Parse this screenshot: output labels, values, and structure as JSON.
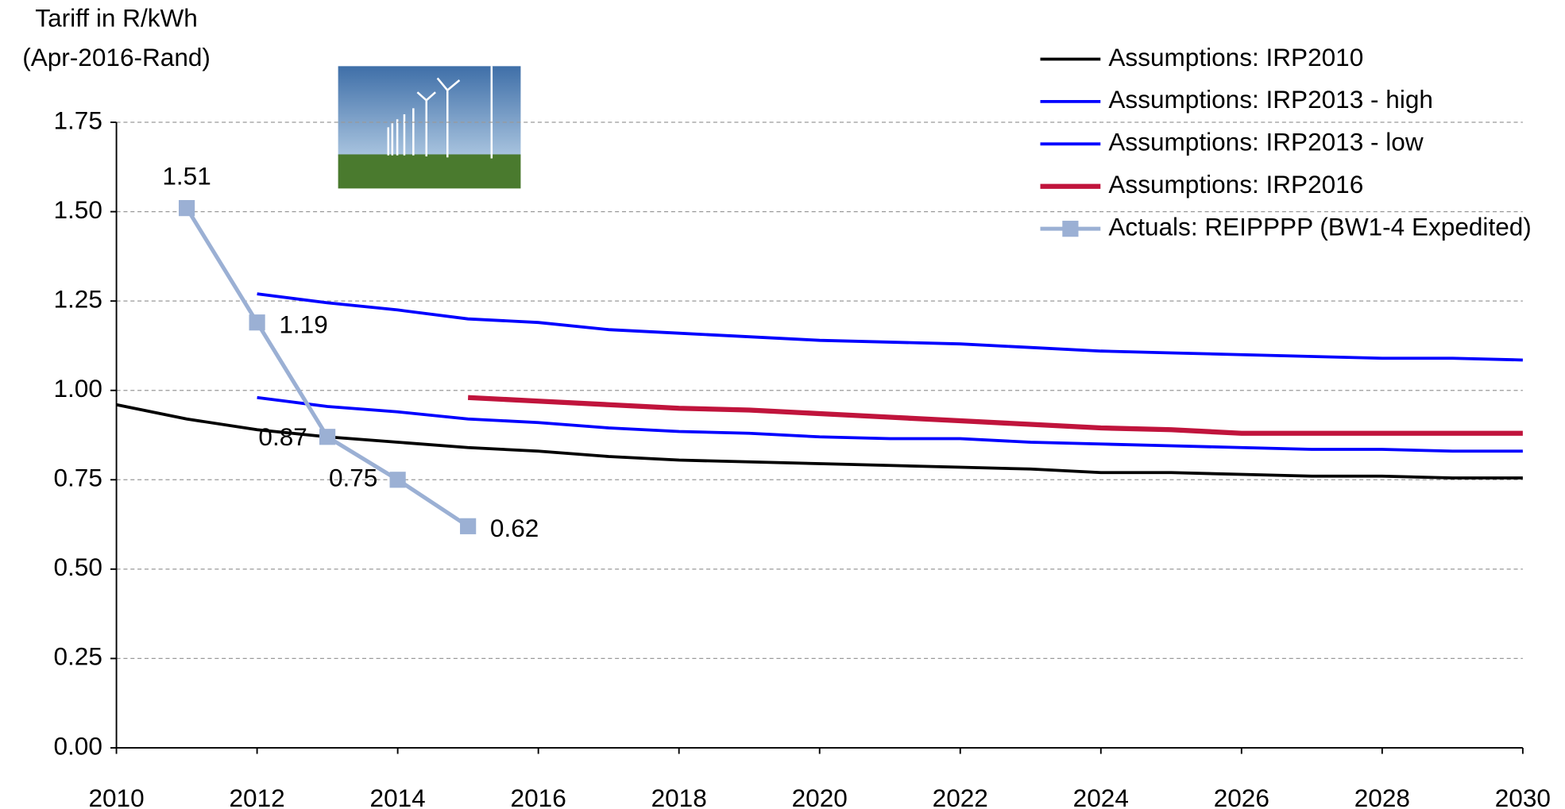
{
  "chart_data": {
    "type": "line",
    "ylabel": [
      "Tariff in R/kWh",
      "(Apr-2016-Rand)"
    ],
    "x": [
      2010,
      2011,
      2012,
      2013,
      2014,
      2015,
      2016,
      2017,
      2018,
      2019,
      2020,
      2021,
      2022,
      2023,
      2024,
      2025,
      2026,
      2027,
      2028,
      2029,
      2030
    ],
    "xlim": [
      2010,
      2030
    ],
    "xticks": [
      2010,
      2012,
      2014,
      2016,
      2018,
      2020,
      2022,
      2024,
      2026,
      2028,
      2030
    ],
    "ylim": [
      0,
      1.75
    ],
    "yticks": [
      {
        "value": 0,
        "label": "0.00"
      },
      {
        "value": 0.25,
        "label": "0.25"
      },
      {
        "value": 0.5,
        "label": "0.50"
      },
      {
        "value": 0.75,
        "label": "0.75"
      },
      {
        "value": 1,
        "label": "1.00"
      },
      {
        "value": 1.25,
        "label": "1.25"
      },
      {
        "value": 1.5,
        "label": "1.50"
      },
      {
        "value": 1.75,
        "label": "1.75"
      }
    ],
    "grid": true,
    "legend": "top-right",
    "series": [
      {
        "name": "Assumptions: IRP2010",
        "color": "#000000",
        "values": [
          0.96,
          0.92,
          0.89,
          0.87,
          0.855,
          0.84,
          0.83,
          0.815,
          0.805,
          0.8,
          0.795,
          0.79,
          0.785,
          0.78,
          0.77,
          0.77,
          0.765,
          0.76,
          0.76,
          0.755,
          0.755
        ]
      },
      {
        "name": "Assumptions: IRP2013 - high",
        "color": "#0000ff",
        "values": [
          null,
          null,
          1.27,
          1.245,
          1.225,
          1.2,
          1.19,
          1.17,
          1.16,
          1.15,
          1.14,
          1.135,
          1.13,
          1.12,
          1.11,
          1.105,
          1.1,
          1.095,
          1.09,
          1.09,
          1.085
        ]
      },
      {
        "name": "Assumptions: IRP2013 - low",
        "color": "#0000ff",
        "values": [
          null,
          null,
          0.98,
          0.955,
          0.94,
          0.92,
          0.91,
          0.895,
          0.885,
          0.88,
          0.87,
          0.865,
          0.865,
          0.855,
          0.85,
          0.845,
          0.84,
          0.835,
          0.835,
          0.83,
          0.83
        ]
      },
      {
        "name": "Assumptions: IRP2016",
        "color": "#c0143c",
        "values": [
          null,
          null,
          null,
          null,
          null,
          0.98,
          0.97,
          0.96,
          0.95,
          0.945,
          0.935,
          0.925,
          0.915,
          0.905,
          0.895,
          0.89,
          0.88,
          0.88,
          0.88,
          0.88,
          0.88
        ]
      },
      {
        "name": "Actuals: REIPPPP (BW1-4 Expedited)",
        "color": "#9bb0d4",
        "marker": "square",
        "data_labels": true,
        "values": [
          null,
          1.51,
          1.19,
          0.87,
          0.75,
          0.62,
          null,
          null,
          null,
          null,
          null,
          null,
          null,
          null,
          null,
          null,
          null,
          null,
          null,
          null,
          null
        ]
      }
    ]
  }
}
